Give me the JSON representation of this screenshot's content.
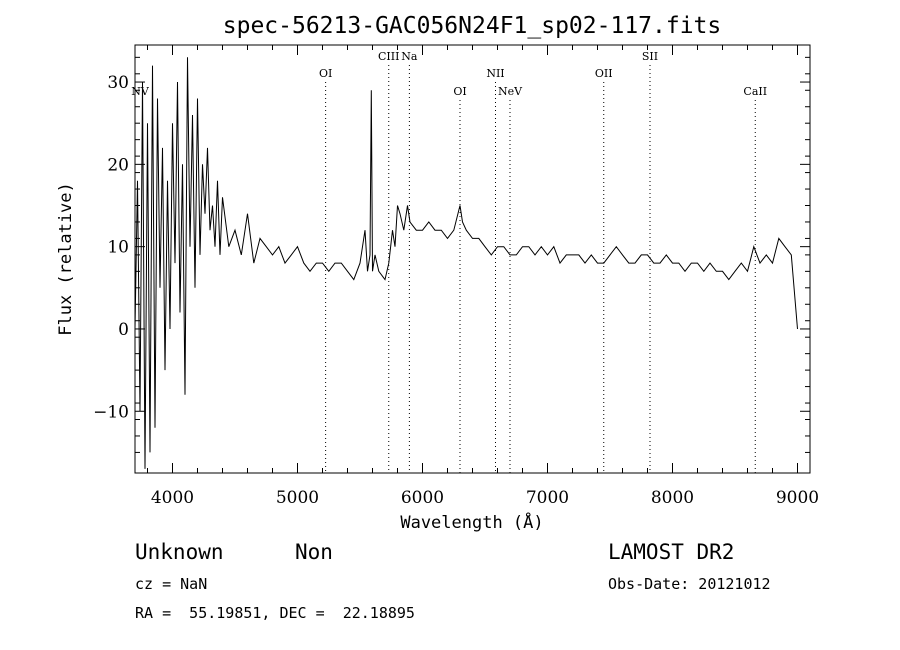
{
  "chart_data": {
    "type": "line",
    "title": "spec-56213-GAC056N24F1_sp02-117.fits",
    "xlabel": "Wavelength (Å)",
    "ylabel": "Flux (relative)",
    "xlim": [
      3700,
      9100
    ],
    "ylim": [
      -17.5,
      34.5
    ],
    "x_ticks": [
      4000,
      5000,
      6000,
      7000,
      8000,
      9000
    ],
    "y_ticks": [
      -10,
      0,
      10,
      20,
      30
    ],
    "x_tick_labels": [
      "4000",
      "5000",
      "6000",
      "7000",
      "8000",
      "9000"
    ],
    "y_tick_labels": [
      "−10",
      "0",
      "10",
      "20",
      "30"
    ],
    "grid": false,
    "series": [
      {
        "x": [
          3700,
          3720,
          3740,
          3760,
          3780,
          3800,
          3820,
          3840,
          3860,
          3880,
          3900,
          3920,
          3940,
          3960,
          3980,
          4000,
          4020,
          4040,
          4060,
          4080,
          4100,
          4120,
          4140,
          4160,
          4180,
          4200,
          4220,
          4240,
          4260,
          4280,
          4300,
          4320,
          4340,
          4360,
          4380,
          4400,
          4450,
          4500,
          4550,
          4600,
          4650,
          4700,
          4750,
          4800,
          4850,
          4900,
          4950,
          5000,
          5050,
          5100,
          5150,
          5200,
          5250,
          5300,
          5350,
          5400,
          5450,
          5500,
          5540,
          5560,
          5580,
          5590,
          5600,
          5620,
          5650,
          5700,
          5730,
          5760,
          5780,
          5800,
          5820,
          5850,
          5880,
          5900,
          5950,
          6000,
          6050,
          6100,
          6150,
          6200,
          6250,
          6300,
          6320,
          6350,
          6400,
          6450,
          6500,
          6550,
          6600,
          6650,
          6700,
          6750,
          6800,
          6850,
          6900,
          6950,
          7000,
          7050,
          7100,
          7150,
          7200,
          7250,
          7300,
          7350,
          7400,
          7450,
          7500,
          7550,
          7600,
          7650,
          7700,
          7750,
          7800,
          7850,
          7900,
          7950,
          8000,
          8050,
          8100,
          8150,
          8200,
          8250,
          8300,
          8350,
          8400,
          8450,
          8500,
          8550,
          8600,
          8650,
          8700,
          8750,
          8800,
          8850,
          8900,
          8950,
          9000
        ],
        "y": [
          0,
          18,
          -10,
          30,
          -17,
          25,
          -15,
          32,
          -12,
          28,
          5,
          22,
          -5,
          18,
          0,
          25,
          8,
          30,
          2,
          20,
          -8,
          33,
          10,
          26,
          5,
          28,
          9,
          20,
          14,
          22,
          12,
          15,
          10,
          18,
          9,
          16,
          10,
          12,
          9,
          14,
          8,
          11,
          10,
          9,
          10,
          8,
          9,
          10,
          8,
          7,
          8,
          8,
          7,
          8,
          8,
          7,
          6,
          8,
          12,
          7,
          9,
          29,
          7,
          9,
          7,
          6,
          8,
          12,
          10,
          15,
          14,
          12,
          15,
          13,
          12,
          12,
          13,
          12,
          12,
          11,
          12,
          15,
          13,
          12,
          11,
          11,
          10,
          9,
          10,
          10,
          9,
          9,
          10,
          10,
          9,
          10,
          9,
          10,
          8,
          9,
          9,
          9,
          8,
          9,
          8,
          8,
          9,
          10,
          9,
          8,
          8,
          9,
          9,
          8,
          8,
          9,
          8,
          8,
          7,
          8,
          8,
          7,
          8,
          7,
          7,
          6,
          7,
          8,
          7,
          10,
          8,
          9,
          8,
          11,
          10,
          9,
          0
        ]
      }
    ],
    "line_labels": [
      {
        "label": "NV",
        "x": 3740,
        "level": 2
      },
      {
        "label": "OI",
        "x": 5225,
        "level": 1
      },
      {
        "label": "CIII",
        "x": 5730,
        "level": 0
      },
      {
        "label": "Na",
        "x": 5895,
        "level": 0
      },
      {
        "label": "OI",
        "x": 6300,
        "level": 2
      },
      {
        "label": "NII",
        "x": 6584,
        "level": 1
      },
      {
        "label": "NeV",
        "x": 6700,
        "level": 2
      },
      {
        "label": "OII",
        "x": 7450,
        "level": 1
      },
      {
        "label": "SII",
        "x": 7820,
        "level": 0
      },
      {
        "label": "CaII",
        "x": 8662,
        "level": 2
      }
    ]
  },
  "info": {
    "class": "Unknown",
    "subclass": "Non",
    "cz": "cz = NaN",
    "radec": "RA =  55.19851, DEC =  22.18895",
    "survey": "LAMOST DR2",
    "obsdate": "Obs-Date: 20121012"
  }
}
